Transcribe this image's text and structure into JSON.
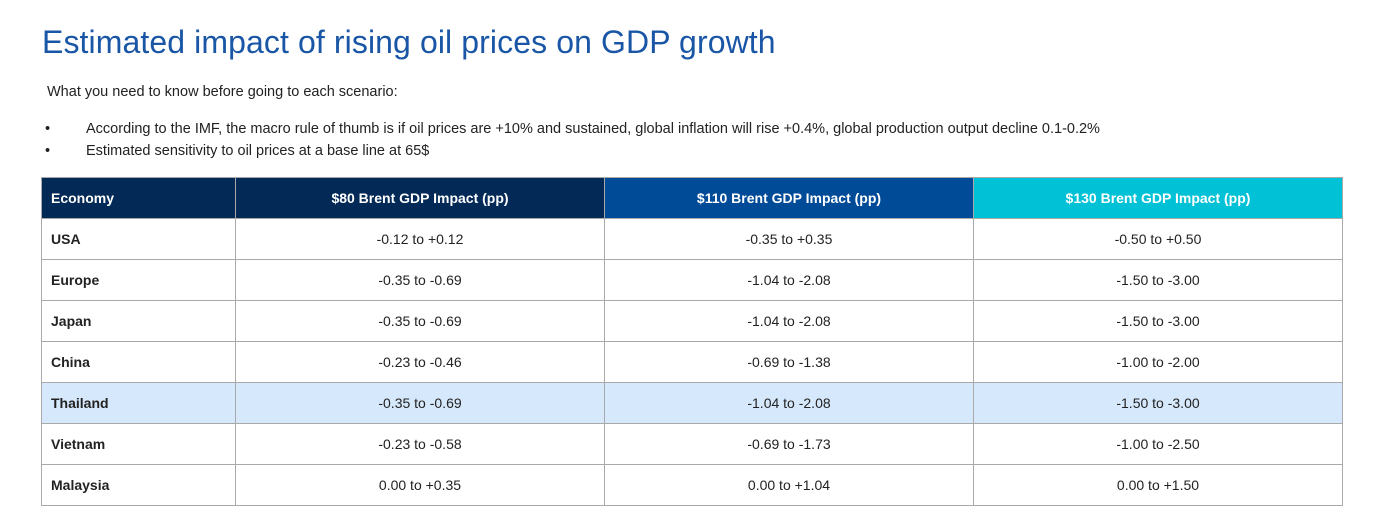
{
  "title": "Estimated impact of rising oil prices on GDP growth",
  "intro": "What you need to know before going to each scenario:",
  "bullets": [
    "According to the IMF, the macro rule of thumb is if oil prices are +10% and sustained, global inflation will rise +0.4%, global production output decline 0.1-0.2%",
    "Estimated sensitivity to oil prices at a base line at 65$"
  ],
  "bullet_glyph": "•",
  "table": {
    "headers": [
      "Economy",
      "$80 Brent GDP Impact (pp)",
      "$110 Brent GDP Impact (pp)",
      "$130 Brent GDP Impact (pp)"
    ],
    "header_colors": [
      "#032a57",
      "#004b98",
      "#00c1d6"
    ],
    "highlight_color": "#d6e8fb",
    "rows": [
      [
        "USA",
        "-0.12 to +0.12",
        "-0.35 to +0.35",
        "-0.50 to +0.50"
      ],
      [
        "Europe",
        "-0.35 to -0.69",
        "-1.04 to -2.08",
        "-1.50 to -3.00"
      ],
      [
        "Japan",
        "-0.35 to -0.69",
        "-1.04 to -2.08",
        "-1.50 to -3.00"
      ],
      [
        "China",
        "-0.23 to -0.46",
        "-0.69 to -1.38",
        "-1.00 to -2.00"
      ],
      [
        "Thailand",
        "-0.35 to -0.69",
        "-1.04 to -2.08",
        "-1.50 to -3.00"
      ],
      [
        "Vietnam",
        "-0.23 to -0.58",
        "-0.69 to -1.73",
        "-1.00 to -2.50"
      ],
      [
        "Malaysia",
        "0.00 to +0.35",
        "0.00 to +1.04",
        "0.00 to +1.50"
      ]
    ],
    "highlighted_row": "Thailand"
  }
}
